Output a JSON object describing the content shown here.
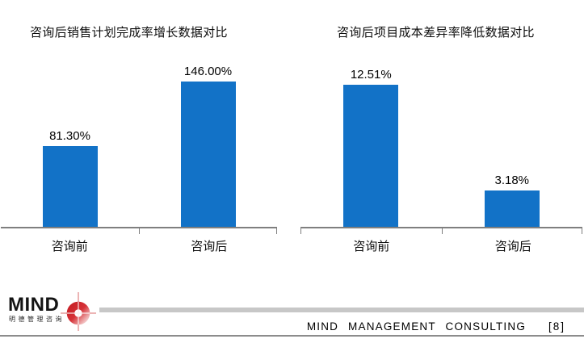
{
  "chart_data": [
    {
      "type": "bar",
      "title": "咨询后销售计划完成率增长数据对比",
      "categories": [
        "咨询前",
        "咨询后"
      ],
      "values": [
        81.3,
        146.0
      ],
      "value_labels": [
        "81.30%",
        "146.00%"
      ],
      "ylim": [
        0,
        160
      ],
      "grid": false,
      "legend": "none",
      "bar_color": "#1272c7",
      "axis_color": "#7f7f7f"
    },
    {
      "type": "bar",
      "title": "咨询后项目成本差异率降低数据对比",
      "categories": [
        "咨询前",
        "咨询后"
      ],
      "values": [
        12.51,
        3.18
      ],
      "value_labels": [
        "12.51%",
        "3.18%"
      ],
      "ylim": [
        0,
        14
      ],
      "grid": false,
      "legend": "none",
      "bar_color": "#1272c7",
      "axis_color": "#7f7f7f"
    }
  ],
  "footer": {
    "brand": "MIND",
    "brand_sub": "明德管理咨询",
    "text": "MIND MANAGEMENT CONSULTING",
    "page": "[8]"
  },
  "colors": {
    "bar_blue": "#1272c7",
    "axis_gray": "#7f7f7f",
    "divider_gray": "#c7c7c7",
    "logo_red": "#cf2127",
    "logo_red_light": "#f2c4c4"
  }
}
